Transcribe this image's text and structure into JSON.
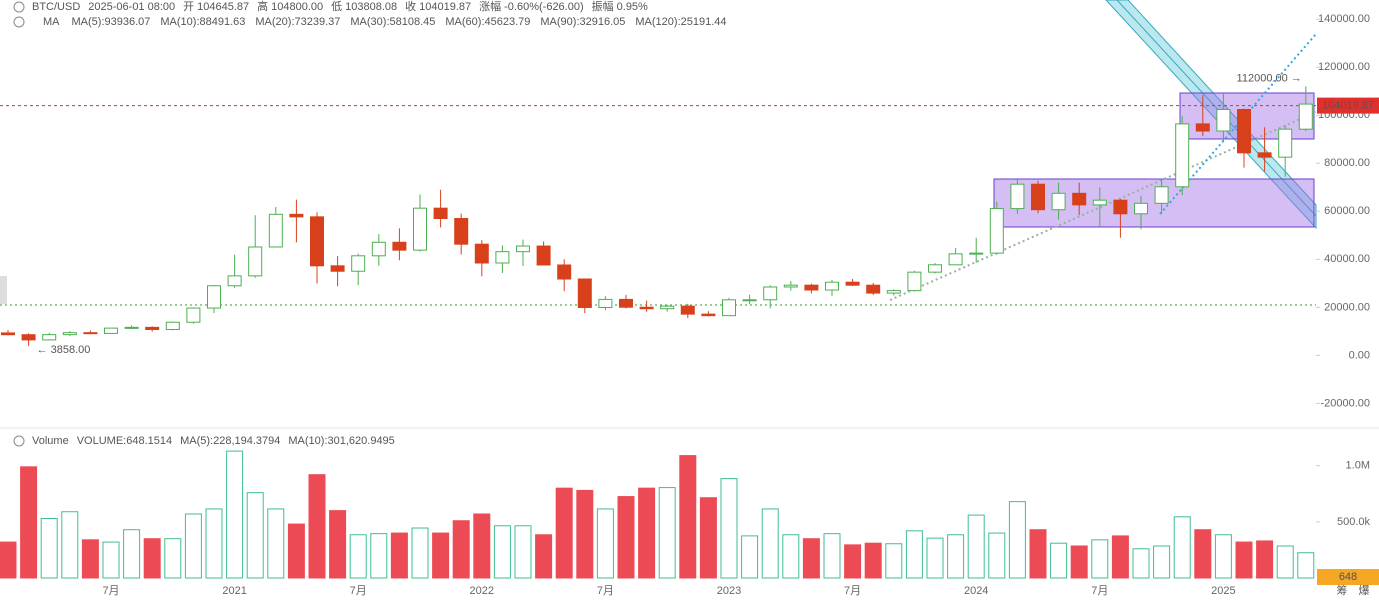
{
  "chart_data": {
    "type": "candlestick",
    "header": {
      "symbol": "BTC/USD",
      "time": "2025-06-01 08:00",
      "fields": [
        {
          "label": "开",
          "value": "104645.87"
        },
        {
          "label": "高",
          "value": "104800.00"
        },
        {
          "label": "低",
          "value": "103808.08"
        },
        {
          "label": "收",
          "value": "104019.87"
        },
        {
          "label": "涨幅",
          "value": "-0.60%(-626.00)"
        },
        {
          "label": "振幅",
          "value": "0.95%"
        }
      ]
    },
    "ma_title": "MA",
    "ma_legend": [
      {
        "label": "MA(5):93936.07",
        "color": "#bdbdbd"
      },
      {
        "label": "MA(10):88491.63",
        "color": "#e6d400"
      },
      {
        "label": "MA(20):73239.37",
        "color": "#e040a0"
      },
      {
        "label": "MA(30):58108.45",
        "color": "#3a8ee6"
      },
      {
        "label": "MA(60):45623.79",
        "color": "#9fd07a"
      },
      {
        "label": "MA(90):32916.05",
        "color": "#f08080"
      },
      {
        "label": "MA(120):25191.44",
        "color": "#19d0e0"
      }
    ],
    "categories": [
      null,
      null,
      null,
      null,
      null,
      "7月",
      null,
      null,
      null,
      null,
      null,
      "2021",
      null,
      null,
      null,
      null,
      null,
      "7月",
      null,
      null,
      null,
      null,
      null,
      "2022",
      null,
      null,
      null,
      null,
      null,
      "7月",
      null,
      null,
      null,
      null,
      null,
      "2023",
      null,
      null,
      null,
      null,
      null,
      "7月",
      null,
      null,
      null,
      null,
      null,
      "2024",
      null,
      null,
      null,
      null,
      null,
      "7月",
      null,
      null,
      null,
      null,
      null,
      "2025",
      null,
      null,
      null,
      null
    ],
    "open": [
      9350,
      8600,
      6440,
      8630,
      9450,
      9140,
      11350,
      11660,
      10780,
      13800,
      19700,
      28990,
      33110,
      45140,
      58740,
      57690,
      37300,
      35040,
      41460,
      47100,
      43820,
      61300,
      57000,
      46300,
      38470,
      43190,
      45530,
      37640,
      31800,
      19940,
      23300,
      20050,
      19430,
      20490,
      17170,
      16540,
      23140,
      23150,
      28480,
      29230,
      27220,
      30470,
      29230,
      25940,
      26970,
      34650,
      37720,
      42280,
      42580,
      61130,
      71280,
      60670,
      67490,
      62680,
      64630,
      58970,
      63330,
      70210,
      96400,
      93430,
      102400,
      84350,
      82550,
      94200
    ],
    "high": [
      10500,
      9190,
      9460,
      10070,
      10380,
      11440,
      12480,
      12080,
      14100,
      19900,
      29300,
      41950,
      58350,
      61780,
      64850,
      59600,
      41330,
      42400,
      50500,
      52920,
      67000,
      69000,
      59050,
      47990,
      45800,
      48190,
      47440,
      40000,
      31980,
      24670,
      25200,
      22800,
      21100,
      21480,
      18390,
      23950,
      25250,
      29190,
      31000,
      29820,
      31430,
      31800,
      30180,
      27480,
      35200,
      38400,
      44700,
      48970,
      64000,
      73800,
      72800,
      71950,
      71980,
      70000,
      65100,
      66500,
      73600,
      99800,
      108350,
      109350,
      102750,
      95000,
      95750,
      112000
    ],
    "low": [
      8450,
      3858,
      6150,
      8120,
      8900,
      8990,
      10950,
      9880,
      10380,
      13200,
      17600,
      28130,
      32300,
      45000,
      47050,
      30000,
      28800,
      29280,
      37330,
      39600,
      43280,
      53250,
      42000,
      32900,
      34300,
      37200,
      37700,
      26700,
      17600,
      18780,
      19520,
      18150,
      18200,
      15480,
      16260,
      16500,
      21350,
      19550,
      26940,
      25810,
      24800,
      28860,
      25170,
      24900,
      26540,
      34100,
      37600,
      38550,
      41880,
      59000,
      59200,
      56550,
      58400,
      53500,
      49000,
      52550,
      58900,
      66800,
      91300,
      89200,
      78200,
      76600,
      74400,
      93400
    ],
    "close": [
      8600,
      6440,
      8630,
      9450,
      9140,
      11350,
      11660,
      10780,
      13800,
      19700,
      28990,
      33110,
      45140,
      58740,
      57690,
      37300,
      35040,
      41460,
      47100,
      43820,
      61300,
      57000,
      46300,
      38470,
      43190,
      45530,
      37640,
      31800,
      19940,
      23300,
      20050,
      19430,
      20490,
      17170,
      16540,
      23140,
      23150,
      28480,
      29230,
      27220,
      30470,
      29230,
      25940,
      26970,
      34650,
      37720,
      42280,
      42580,
      61130,
      71280,
      60670,
      67490,
      62680,
      64630,
      58970,
      63330,
      70210,
      96400,
      93430,
      102400,
      84350,
      82550,
      94200,
      104645.87
    ],
    "up_color": "#4caf50",
    "down_color": "#d8401c",
    "ylim": [
      -29000,
      148000
    ],
    "yticks": [
      {
        "value": 140000,
        "label": "140000.00"
      },
      {
        "value": 120000,
        "label": "120000.00"
      },
      {
        "value": 100000,
        "label": "100000.00"
      },
      {
        "value": 80000,
        "label": "80000.00"
      },
      {
        "value": 60000,
        "label": "60000.00"
      },
      {
        "value": 40000,
        "label": "40000.00"
      },
      {
        "value": 20000,
        "label": "20000.00"
      },
      {
        "value": 0,
        "label": "0.00"
      },
      {
        "value": -20000,
        "label": "-20000.00"
      }
    ],
    "last_price": {
      "value": 104019.87,
      "label": "104019.87"
    },
    "high_marker": {
      "value": 112000,
      "label": "112000.00 →"
    },
    "low_marker": {
      "value": 3858,
      "label": "← 3858.00"
    },
    "volume": {
      "legend": [
        {
          "label": "Volume",
          "color": "#555555"
        },
        {
          "label": "VOLUME:648.1514",
          "color": "#888888"
        },
        {
          "label": "MA(5):228,194.3794",
          "color": "#26a69a"
        },
        {
          "label": "MA(10):301,620.9495",
          "color": "#f5a623"
        }
      ],
      "values": [
        320000,
        990000,
        530000,
        590000,
        340000,
        320000,
        430000,
        350000,
        350000,
        570000,
        615000,
        1130000,
        760000,
        615000,
        480000,
        920000,
        600000,
        385000,
        395000,
        400000,
        445000,
        400000,
        510000,
        570000,
        465000,
        465000,
        385000,
        800000,
        780000,
        615000,
        725000,
        800000,
        805000,
        1090000,
        715000,
        885000,
        375000,
        615000,
        385000,
        350000,
        395000,
        295000,
        310000,
        305000,
        420000,
        355000,
        385000,
        560000,
        400000,
        680000,
        430000,
        310000,
        285000,
        340000,
        375000,
        260000,
        285000,
        545000,
        430000,
        385000,
        320000,
        330000,
        285000,
        225000
      ],
      "up_color": "#3fbf8f",
      "down_color": "#ec4b55",
      "ylim": [
        0,
        1300000
      ],
      "yticks": [
        {
          "value": 1000000,
          "label": "1.0M"
        },
        {
          "value": 500000,
          "label": "500.0k"
        }
      ],
      "last_label": "648"
    },
    "buttons": [
      "筹",
      "爆"
    ]
  }
}
